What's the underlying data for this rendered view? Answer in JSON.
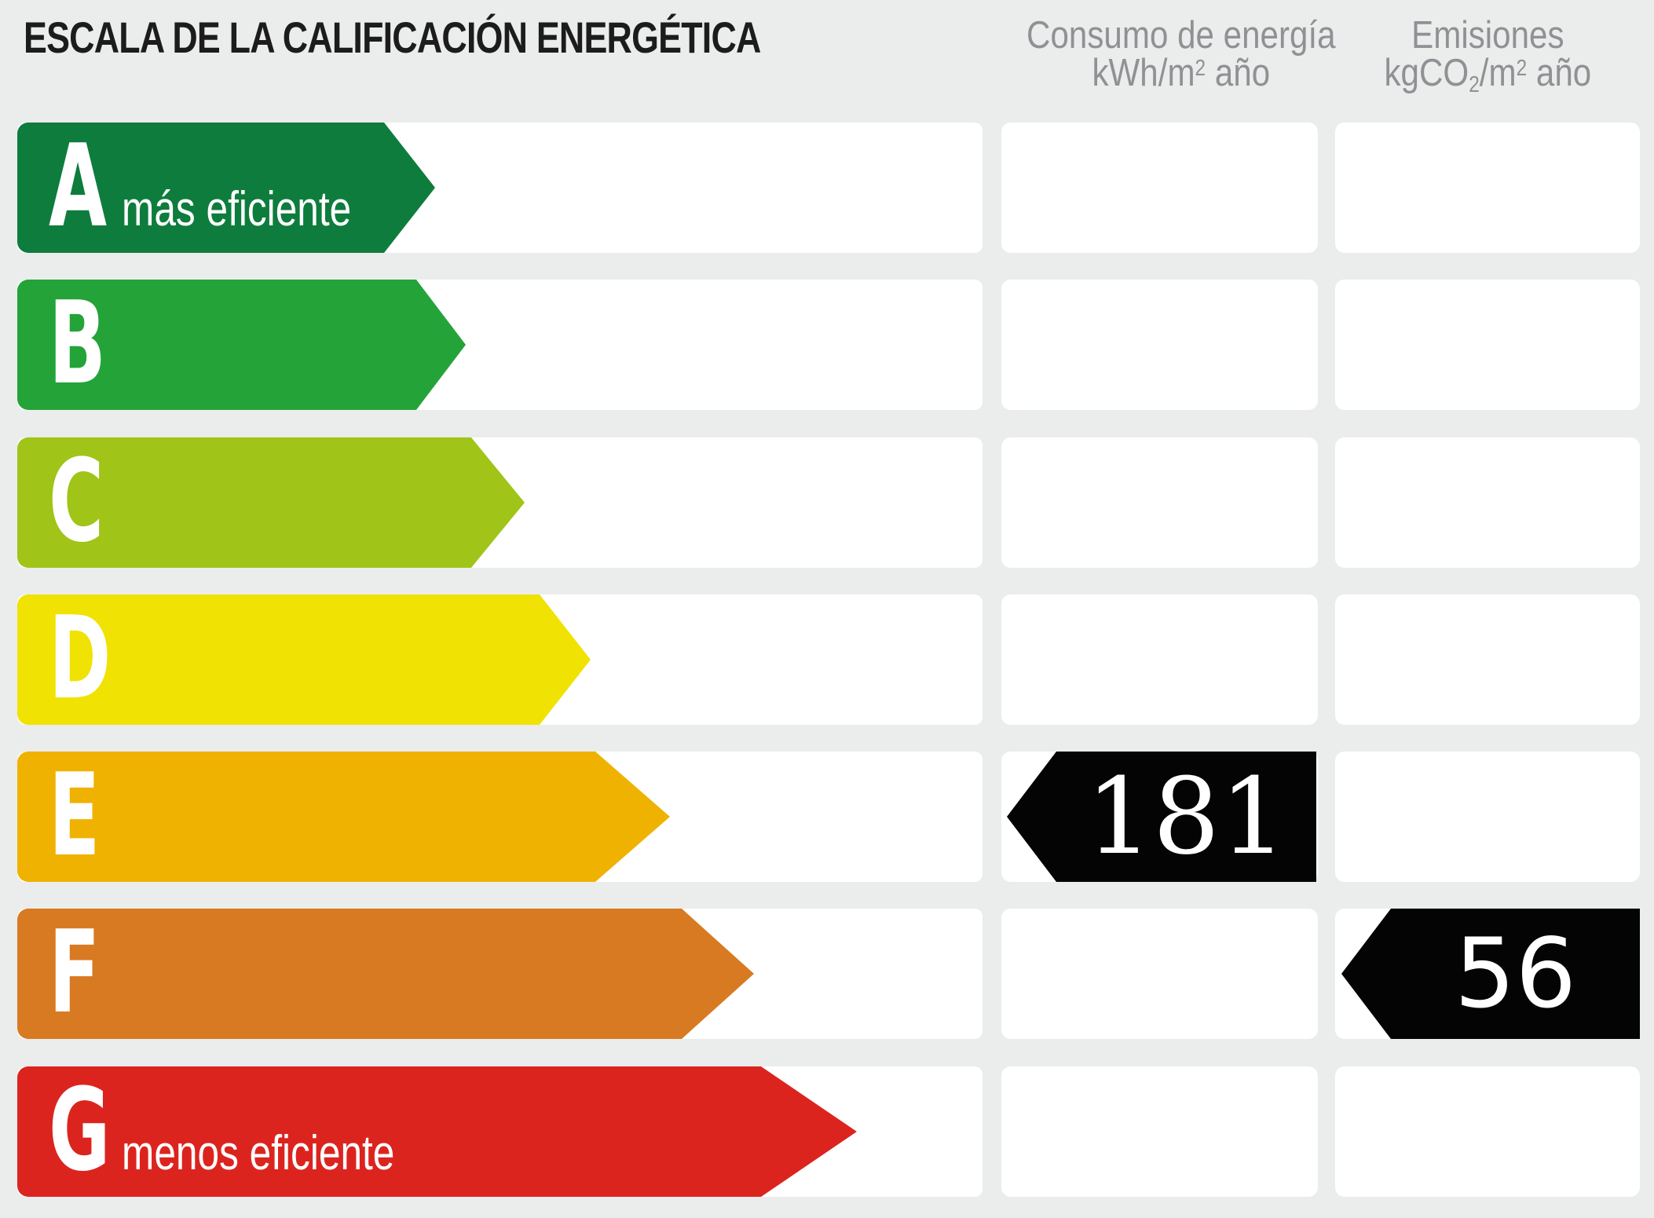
{
  "title": "ESCALA DE LA CALIFICACIÓN ENERGÉTICA",
  "columns": {
    "consumption": {
      "title": "Consumo de energía",
      "unit_prefix": "kWh/m",
      "unit_sup": "2",
      "unit_suffix": " año"
    },
    "emissions": {
      "title": "Emisiones",
      "unit_prefix": "kgCO",
      "unit_sub": "2",
      "unit_mid": "/m",
      "unit_sup": "2",
      "unit_suffix": " año"
    }
  },
  "scale": {
    "rows": [
      {
        "grade": "A",
        "label": "más eficiente",
        "color": "#0e7c3d"
      },
      {
        "grade": "B",
        "label": "",
        "color": "#24a339"
      },
      {
        "grade": "C",
        "label": "",
        "color": "#a0c417"
      },
      {
        "grade": "D",
        "label": "",
        "color": "#f0e202"
      },
      {
        "grade": "E",
        "label": "",
        "color": "#efb200"
      },
      {
        "grade": "F",
        "label": "",
        "color": "#d87a22"
      },
      {
        "grade": "G",
        "label": "menos eficiente",
        "color": "#dc241f"
      }
    ]
  },
  "indicators": {
    "consumption": {
      "value": "181",
      "grade": "E"
    },
    "emissions": {
      "value": "56",
      "grade": "F"
    }
  },
  "colors": {
    "background": "#ebecec",
    "band": "#ffffff",
    "indicator": "#040404",
    "title_text": "#1c1c1c",
    "header_text": "#909194"
  },
  "chart_data": {
    "type": "table",
    "title": "ESCALA DE LA CALIFICACIÓN ENERGÉTICA",
    "categories": [
      "A",
      "B",
      "C",
      "D",
      "E",
      "F",
      "G"
    ],
    "category_notes": {
      "A": "más eficiente",
      "G": "menos eficiente"
    },
    "series": [
      {
        "name": "Consumo de energía kWh/m2 año",
        "values": [
          null,
          null,
          null,
          null,
          181,
          null,
          null
        ]
      },
      {
        "name": "Emisiones kgCO2/m2 año",
        "values": [
          null,
          null,
          null,
          null,
          null,
          56,
          null
        ]
      }
    ],
    "legend_position": "top",
    "grid": false
  }
}
